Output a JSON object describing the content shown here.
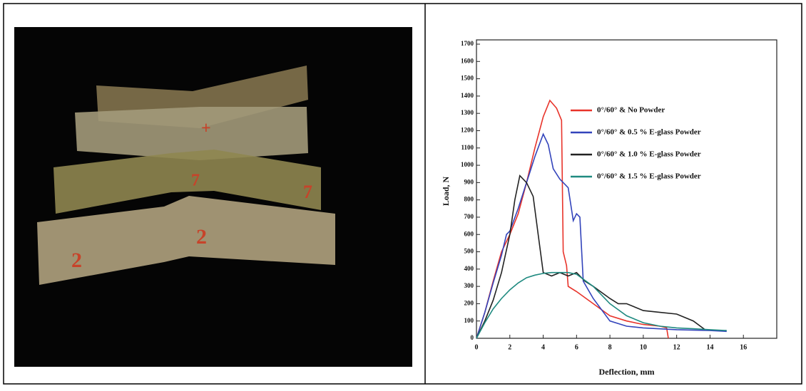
{
  "chart_data": {
    "type": "line",
    "xlabel": "Deflection, mm",
    "ylabel": "Load, N",
    "xlim": [
      0,
      18
    ],
    "ylim": [
      0,
      1700
    ],
    "xticks": [
      0,
      2,
      4,
      6,
      8,
      10,
      12,
      14,
      16
    ],
    "yticks": [
      0,
      100,
      200,
      300,
      400,
      500,
      600,
      700,
      800,
      900,
      1000,
      1100,
      1200,
      1300,
      1400,
      1500,
      1600,
      1700
    ],
    "legend": "upper right",
    "series": [
      {
        "name": "0°/60° & No Powder",
        "color": "#e8332a",
        "x": [
          0,
          0.5,
          1,
          1.5,
          2,
          2.5,
          3,
          3.5,
          4,
          4.4,
          4.8,
          5.1,
          5.2,
          5.4,
          5.5,
          6,
          7,
          8,
          9,
          10,
          11,
          11.4,
          11.5
        ],
        "values": [
          0,
          150,
          330,
          500,
          600,
          720,
          900,
          1100,
          1280,
          1375,
          1330,
          1260,
          500,
          420,
          300,
          270,
          200,
          130,
          100,
          80,
          70,
          60,
          0
        ]
      },
      {
        "name": "0°/60° & 0.5 % E-glass Powder",
        "color": "#3344bb",
        "x": [
          0,
          0.5,
          1,
          1.5,
          1.8,
          2,
          2.5,
          3,
          3.5,
          4,
          4.3,
          4.6,
          5,
          5.5,
          5.8,
          6,
          6.2,
          6.4,
          7,
          8,
          9,
          10,
          12,
          14,
          15
        ],
        "values": [
          0,
          150,
          320,
          480,
          600,
          620,
          750,
          900,
          1050,
          1180,
          1120,
          980,
          920,
          870,
          680,
          720,
          700,
          330,
          230,
          100,
          70,
          60,
          50,
          45,
          40
        ]
      },
      {
        "name": "0°/60° & 1.0 % E-glass Powder",
        "color": "#222222",
        "x": [
          0,
          0.5,
          1,
          1.5,
          2,
          2.3,
          2.6,
          3,
          3.4,
          3.7,
          4,
          4.5,
          5,
          5.5,
          6,
          6.5,
          7,
          8,
          8.5,
          9,
          10,
          11,
          12,
          13,
          13.7
        ],
        "values": [
          0,
          100,
          220,
          380,
          600,
          800,
          940,
          900,
          820,
          600,
          380,
          360,
          380,
          360,
          380,
          330,
          300,
          230,
          200,
          200,
          160,
          150,
          140,
          100,
          50
        ]
      },
      {
        "name": "0°/60° & 1.5 % E-glass Powder",
        "color": "#1f8a80",
        "x": [
          0,
          0.5,
          1,
          1.5,
          2,
          2.5,
          3,
          3.5,
          4,
          4.5,
          5,
          5.5,
          6,
          7,
          8,
          9,
          10,
          11,
          12,
          13,
          14,
          15
        ],
        "values": [
          0,
          90,
          170,
          230,
          280,
          320,
          350,
          365,
          375,
          380,
          380,
          380,
          370,
          300,
          200,
          130,
          90,
          70,
          60,
          55,
          50,
          45
        ]
      }
    ]
  }
}
